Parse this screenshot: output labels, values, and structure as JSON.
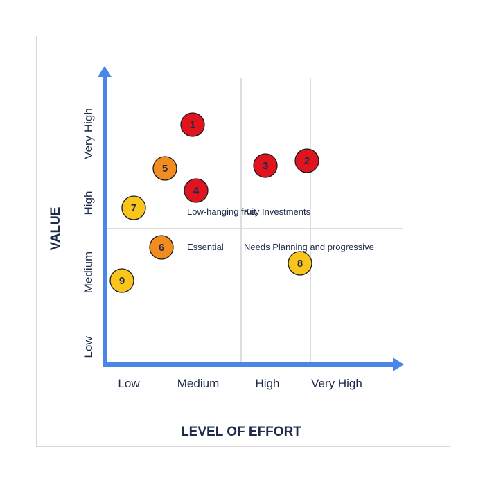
{
  "chart_data": {
    "type": "scatter",
    "title": "",
    "xlabel": "LEVEL OF EFFORT",
    "ylabel": "VALUE",
    "x_ticks": [
      "Low",
      "Medium",
      "High",
      "Very High"
    ],
    "y_ticks": [
      "Low",
      "Medium",
      "High",
      "Very High"
    ],
    "xlim": [
      0,
      4
    ],
    "ylim": [
      0,
      4
    ],
    "quadrant_divider": {
      "x": 2.0,
      "y": 1.95
    },
    "grid_x": [
      2.0,
      3.0
    ],
    "quadrant_labels": [
      {
        "text": "Low-hanging fruit",
        "x": 1.23,
        "y": 2.2
      },
      {
        "text": "Key Investments",
        "x": 2.05,
        "y": 2.2
      },
      {
        "text": "Essential",
        "x": 1.23,
        "y": 1.69
      },
      {
        "text": "Needs Planning and progressive",
        "x": 2.05,
        "y": 1.69
      }
    ],
    "points": [
      {
        "label": "1",
        "x": 1.3,
        "y": 3.45,
        "color": "#e0141e"
      },
      {
        "label": "2",
        "x": 2.95,
        "y": 2.93,
        "color": "#e0141e"
      },
      {
        "label": "3",
        "x": 2.35,
        "y": 2.86,
        "color": "#e0141e"
      },
      {
        "label": "4",
        "x": 1.35,
        "y": 2.5,
        "color": "#e0141e"
      },
      {
        "label": "5",
        "x": 0.9,
        "y": 2.82,
        "color": "#f28c1e"
      },
      {
        "label": "6",
        "x": 0.85,
        "y": 1.68,
        "color": "#f28c1e"
      },
      {
        "label": "7",
        "x": 0.45,
        "y": 2.25,
        "color": "#f9c51b"
      },
      {
        "label": "8",
        "x": 2.85,
        "y": 1.45,
        "color": "#f9c51b"
      },
      {
        "label": "9",
        "x": 0.28,
        "y": 1.2,
        "color": "#f9c51b"
      }
    ],
    "colors": {
      "axis": "#4a86e8",
      "grid": "#d4d4d4",
      "text": "#1d2a4a",
      "point_stroke": "#1a1a1a"
    }
  }
}
